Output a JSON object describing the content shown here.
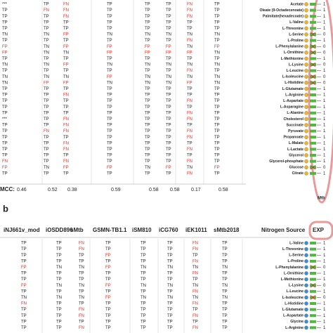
{
  "panel_a": {
    "rows": [
      {
        "cells": [
          "***",
          "TP",
          "FN",
          "TP",
          "TP",
          "TP",
          "FN",
          "TP"
        ],
        "metabolite": "Acetate",
        "exp": "1"
      },
      {
        "cells": [
          "TP",
          "FN",
          "FN",
          "TP",
          "TP",
          "TP",
          "FN",
          "TP"
        ],
        "metabolite": "Oleate (9-Octadecenoate)",
        "exp": "1"
      },
      {
        "cells": [
          "TP",
          "TP",
          "FN",
          "TP",
          "TP",
          "TP",
          "FN",
          "TP"
        ],
        "metabolite": "Palmitate(hexadecoate)",
        "exp": "1"
      },
      {
        "cells": [
          "TP",
          "TP",
          "TP",
          "TP",
          "TP",
          "TP",
          "TP",
          "TP"
        ],
        "metabolite": "L-Valine",
        "exp": "1"
      },
      {
        "cells": [
          "TP",
          "TP",
          "TP",
          "TP",
          "TP",
          "TP",
          "TP",
          "TP"
        ],
        "metabolite": "L-Threonine",
        "exp": "1"
      },
      {
        "cells": [
          "TN",
          "TN",
          "FP",
          "TN",
          "TN",
          "TN",
          "TN",
          "TN"
        ],
        "metabolite": "L-Serine",
        "exp": "0"
      },
      {
        "cells": [
          "TP",
          "TP",
          "TP",
          "TP",
          "TP",
          "TP",
          "FN",
          "TP"
        ],
        "metabolite": "L-Proline",
        "exp": "1"
      },
      {
        "cells": [
          "FP",
          "TN",
          "FP",
          "FP",
          "FP",
          "FP",
          "TN",
          "FP"
        ],
        "metabolite": "L-Phenylalanine",
        "exp": "0"
      },
      {
        "cells": [
          "FP",
          "TN",
          "TN",
          "FP",
          "FP",
          "FP",
          "FP",
          "TN"
        ],
        "metabolite": "L-Ornithine",
        "exp": "0"
      },
      {
        "cells": [
          "TP",
          "TP",
          "TP",
          "TP",
          "TP",
          "TP",
          "TP",
          "TP"
        ],
        "metabolite": "L-Methionine",
        "exp": "1"
      },
      {
        "cells": [
          "TN",
          "TN",
          "FP",
          "TN",
          "TN",
          "TN",
          "TN",
          "TN"
        ],
        "metabolite": "L-Lysine",
        "exp": "0"
      },
      {
        "cells": [
          "TP",
          "TP",
          "TP",
          "TP",
          "TP",
          "TP",
          "FN",
          "TP"
        ],
        "metabolite": "L-Leucine",
        "exp": "1"
      },
      {
        "cells": [
          "TN",
          "TN",
          "TN",
          "FP",
          "TN",
          "TN",
          "TN",
          "TN"
        ],
        "metabolite": "L-Isoleucine",
        "exp": "0"
      },
      {
        "cells": [
          "TN",
          "FP",
          "FP",
          "TN",
          "TN",
          "TN",
          "FP",
          "TN"
        ],
        "metabolite": "L-Histidine",
        "exp": "0"
      },
      {
        "cells": [
          "TP",
          "TP",
          "TP",
          "TP",
          "TP",
          "TP",
          "TP",
          "TP"
        ],
        "metabolite": "L-Glutamate",
        "exp": "1"
      },
      {
        "cells": [
          "TP",
          "TP",
          "FN",
          "TP",
          "TP",
          "TP",
          "TP",
          "TP"
        ],
        "metabolite": "L-Arginine",
        "exp": "1"
      },
      {
        "cells": [
          "TP",
          "TP",
          "TP",
          "TP",
          "TP",
          "TP",
          "FN",
          "TP"
        ],
        "metabolite": "L-Aspartate",
        "exp": "1"
      },
      {
        "cells": [
          "TP",
          "TP",
          "TP",
          "TP",
          "TP",
          "TP",
          "TP",
          "TP"
        ],
        "metabolite": "L-Asparagine",
        "exp": "1"
      },
      {
        "cells": [
          "TP",
          "TP",
          "TP",
          "TP",
          "TP",
          "TP",
          "FN",
          "TP"
        ],
        "metabolite": "L-Alanine",
        "exp": "1"
      },
      {
        "cells": [
          "***",
          "TP",
          "FN",
          "TP",
          "TP",
          "TP",
          "FN",
          "TP"
        ],
        "metabolite": "Cholesterol",
        "exp": "1"
      },
      {
        "cells": [
          "TP",
          "TP",
          "FN",
          "TP",
          "TP",
          "TP",
          "TP",
          "TP"
        ],
        "metabolite": "Succinate",
        "exp": "1"
      },
      {
        "cells": [
          "TP",
          "FN",
          "FN",
          "TP",
          "TP",
          "TP",
          "FN",
          "TP"
        ],
        "metabolite": "Pyruvate",
        "exp": "1"
      },
      {
        "cells": [
          "TP",
          "TP",
          "TP",
          "TP",
          "TP",
          "TP",
          "FN",
          "TP"
        ],
        "metabolite": "Propanoate",
        "exp": "1"
      },
      {
        "cells": [
          "TP",
          "TP",
          "FN",
          "TP",
          "TP",
          "TP",
          "TP",
          "TP"
        ],
        "metabolite": "L-Malate",
        "exp": "1"
      },
      {
        "cells": [
          "TP",
          "TP",
          "FN",
          "TP",
          "TP",
          "TP",
          "FN",
          "TP"
        ],
        "metabolite": "L-Lactate",
        "exp": "1"
      },
      {
        "cells": [
          "TP",
          "TP",
          "TP",
          "TP",
          "TP",
          "TP",
          "TP",
          "TP"
        ],
        "metabolite": "Glycerol",
        "exp": "1"
      },
      {
        "cells": [
          "FN",
          "TP",
          "FN",
          "TP",
          "TP",
          "TP",
          "FN",
          "TP"
        ],
        "metabolite": "Glycerol-phosphate",
        "exp": "1"
      },
      {
        "cells": [
          "FP",
          "TN",
          "FP",
          "FP",
          "TN",
          "FP",
          "TN",
          "FP"
        ],
        "metabolite": "Glucose",
        "exp": "0"
      },
      {
        "cells": [
          "TP",
          "TP",
          "TP",
          "TP",
          "TP",
          "TP",
          "FN",
          "TP"
        ],
        "metabolite": "Citrate",
        "exp": "1"
      }
    ],
    "mcc_label": "MCC:",
    "mcc": [
      "0.46",
      "0.52",
      "0.38",
      "0.59",
      "0.58",
      "0.58",
      "0.17",
      "0.58"
    ],
    "exp_caption": "Mtb"
  },
  "panel_b": {
    "label": "b",
    "headers": [
      "iNJ661v_mod",
      "iOSDD890",
      "sMtb",
      "GSMN-TB1.1",
      "iSM810",
      "iCG760",
      "iEK1011",
      "sMtb2018"
    ],
    "source_header": "Nitrogen Source",
    "exp_header": "EXP",
    "rows": [
      {
        "cells": [
          "TP",
          "TP",
          "FN",
          "TP",
          "TP",
          "TP",
          "FN",
          "TP"
        ],
        "metabolite": "L-Valine",
        "exp": "1"
      },
      {
        "cells": [
          "TP",
          "TP",
          "FN",
          "TP",
          "TP",
          "TP",
          "FN",
          "TP"
        ],
        "metabolite": "L-Threonine",
        "exp": "1"
      },
      {
        "cells": [
          "TP",
          "TP",
          "TP",
          "FP",
          "TP",
          "TP",
          "TP",
          "TP"
        ],
        "metabolite": "L-Serine",
        "exp": "1"
      },
      {
        "cells": [
          "TP",
          "TP",
          "TP",
          "TP",
          "TP",
          "TP",
          "FN",
          "TP"
        ],
        "metabolite": "L-Proline",
        "exp": "1"
      },
      {
        "cells": [
          "FP",
          "TN",
          "TN",
          "FP",
          "TN",
          "TN",
          "TN",
          "TN"
        ],
        "metabolite": "L-Phenylalanine",
        "exp": "0"
      },
      {
        "cells": [
          "TP",
          "TP",
          "TP",
          "TP",
          "TP",
          "TP",
          "FN",
          "TP"
        ],
        "metabolite": "L-Ornithine",
        "exp": "1"
      },
      {
        "cells": [
          "TP",
          "TP",
          "TP",
          "TP",
          "TP",
          "TP",
          "TP",
          "TP"
        ],
        "metabolite": "L-Methionine",
        "exp": "1"
      },
      {
        "cells": [
          "FP",
          "TN",
          "TN",
          "FP",
          "TN",
          "TN",
          "TN",
          "TN"
        ],
        "metabolite": "L-Lysine",
        "exp": "0"
      },
      {
        "cells": [
          "TP",
          "TP",
          "TP",
          "TP",
          "TP",
          "TP",
          "FN",
          "TP"
        ],
        "metabolite": "L-Leucine",
        "exp": "1"
      },
      {
        "cells": [
          "TN",
          "TN",
          "TN",
          "FP",
          "TN",
          "TN",
          "TN",
          "TN"
        ],
        "metabolite": "L-Isoleucine",
        "exp": "0"
      },
      {
        "cells": [
          "FN",
          "TP",
          "TP",
          "TP",
          "TP",
          "TP",
          "FN",
          "TP"
        ],
        "metabolite": "L-Histidine",
        "exp": "1"
      },
      {
        "cells": [
          "TP",
          "TP",
          "FN",
          "TP",
          "TP",
          "TP",
          "TP",
          "TP"
        ],
        "metabolite": "L-Glutamate",
        "exp": "1"
      },
      {
        "cells": [
          "TP",
          "TP",
          "FN",
          "TP",
          "TP",
          "TP",
          "FN",
          "TP"
        ],
        "metabolite": "L-Aspartate",
        "exp": "1"
      },
      {
        "cells": [
          "TP",
          "TP",
          "TP",
          "TP",
          "TP",
          "TP",
          "TP",
          "TP"
        ],
        "metabolite": "Glycine",
        "exp": "1"
      },
      {
        "cells": [
          "TP",
          "TP",
          "FN",
          "TP",
          "TP",
          "TP",
          "FN",
          "TP"
        ],
        "metabolite": "L-Arginine",
        "exp": "1"
      }
    ]
  }
}
